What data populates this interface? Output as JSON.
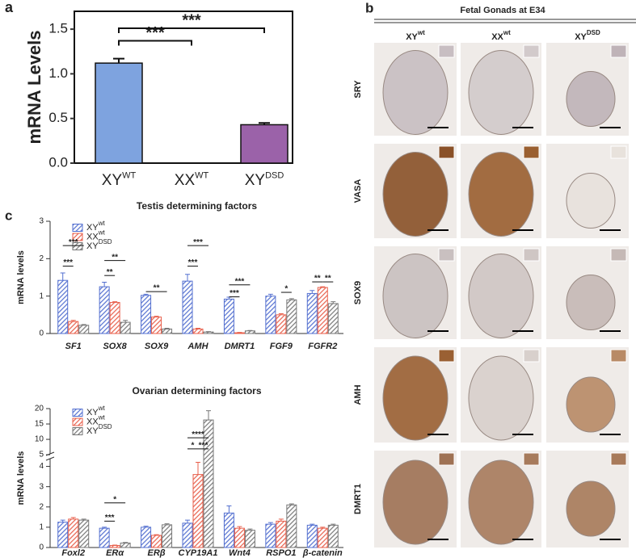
{
  "chart_data": [
    {
      "type": "bar",
      "panel": "a",
      "ylabel": "mRNA Levels",
      "categories": [
        "XY",
        "XX",
        "XY"
      ],
      "category_superscripts": [
        "WT",
        "WT",
        "DSD"
      ],
      "values": [
        1.12,
        0,
        0.43
      ],
      "errors": [
        0.05,
        0,
        0.02
      ],
      "colors": [
        "#7ea3df",
        "#7ea3df",
        "#9b62a9"
      ],
      "ylim": [
        0,
        1.7
      ],
      "yticks": [
        {
          "value": 0,
          "label": "0.0"
        },
        0.5,
        {
          "value": 1,
          "label": "1.0"
        },
        1.5
      ],
      "annotations": [
        "***",
        "***"
      ]
    },
    {
      "type": "grouped-bar",
      "panel": "c",
      "title": "Testis determining factors",
      "ylabel": "mRNA levels",
      "categories": [
        "SF1",
        "SOX8",
        "SOX9",
        "AMH",
        "DMRT1",
        "FGF9",
        "FGFR2"
      ],
      "series": [
        {
          "name": "XY",
          "superscript": "wt",
          "color": "#5470d0",
          "values": [
            1.42,
            1.25,
            1.02,
            1.4,
            0.92,
            1.0,
            1.07
          ],
          "errors": [
            0.2,
            0.12,
            0.03,
            0.18,
            0.05,
            0.05,
            0.08
          ]
        },
        {
          "name": "XX",
          "superscript": "wt",
          "color": "#e8604c",
          "values": [
            0.32,
            0.83,
            0.44,
            0.12,
            0.02,
            0.5,
            1.23
          ],
          "errors": [
            0.03,
            0.02,
            0.02,
            0.02,
            0.01,
            0.03,
            0.02
          ]
        },
        {
          "name": "XY",
          "superscript": "DSD",
          "color": "#777777",
          "values": [
            0.22,
            0.3,
            0.12,
            0.04,
            0.07,
            0.9,
            0.8
          ],
          "errors": [
            0.02,
            0.05,
            0.02,
            0.01,
            0.01,
            0.03,
            0.05
          ]
        }
      ],
      "ylim": [
        0,
        3
      ],
      "yticks": [
        0,
        1,
        2,
        3
      ],
      "annotations": [
        "***",
        "***",
        "**",
        "**",
        "**",
        "***",
        "***",
        "***",
        "***",
        "*",
        "**",
        "**"
      ]
    },
    {
      "type": "grouped-bar",
      "title": "Ovarian determining factors",
      "ylabel": "mRNA levels",
      "categories": [
        "Foxl2",
        "ERα",
        "ERβ",
        "CYP19A1",
        "Wnt4",
        "RSPO1",
        "β-catenin"
      ],
      "series": [
        {
          "name": "XY",
          "superscript": "wt",
          "color": "#5470d0",
          "values": [
            1.25,
            0.95,
            1.0,
            1.2,
            1.7,
            1.15,
            1.1
          ],
          "errors": [
            0.1,
            0.05,
            0.05,
            0.15,
            0.35,
            0.08,
            0.05
          ]
        },
        {
          "name": "XX",
          "superscript": "wt",
          "color": "#e8604c",
          "values": [
            1.4,
            0.1,
            0.6,
            3.6,
            0.95,
            1.3,
            0.95
          ],
          "errors": [
            0.08,
            0.02,
            0.03,
            0.6,
            0.08,
            0.1,
            0.05
          ]
        },
        {
          "name": "XY",
          "superscript": "DSD",
          "color": "#777777",
          "values": [
            1.35,
            0.22,
            1.12,
            16.3,
            0.85,
            2.1,
            1.1
          ],
          "errors": [
            0.05,
            0.03,
            0.05,
            3.0,
            0.06,
            0.05,
            0.05
          ]
        }
      ],
      "ylim": [
        0,
        20
      ],
      "y_break": 4.5,
      "yticks": [
        0,
        1,
        2,
        3,
        4,
        5,
        10,
        15,
        20
      ],
      "annotations": [
        "*",
        "***",
        "****",
        "*",
        "***"
      ]
    }
  ],
  "panel_b": {
    "label": "b",
    "title": "Fetal Gonads at E34",
    "columns": [
      "XY",
      "XX",
      "XY"
    ],
    "column_superscripts": [
      "wt",
      "wt",
      "DSD"
    ],
    "rows": [
      "SRY",
      "VASA",
      "SOX9",
      "AMH",
      "DMRT1"
    ]
  }
}
